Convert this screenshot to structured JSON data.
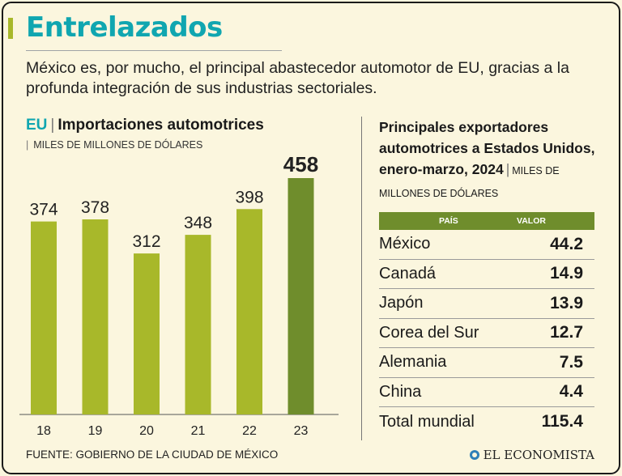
{
  "header": {
    "title": "Entrelazados",
    "subtitle": "México es, por mucho, el principal abastecedor automotor de EU, gracias a la profunda integración de sus industrias sectoriales."
  },
  "colors": {
    "accent": "#10a6b0",
    "bar": "#a8b82a",
    "bar_highlight": "#6f8d2c",
    "table_header": "#6f8d2c"
  },
  "chart_data": {
    "type": "bar",
    "title_prefix": "EU",
    "title": "Importaciones automotrices",
    "ylabel": "MILES DE MILLONES DE DÓLARES",
    "categories": [
      "18",
      "19",
      "20",
      "21",
      "22",
      "23"
    ],
    "values": [
      374,
      378,
      312,
      348,
      398,
      458
    ],
    "highlight_index": 5,
    "ylim": [
      0,
      458
    ],
    "grid": false,
    "legend": "none"
  },
  "table": {
    "title": "Principales exportadores automotrices a Estados Unidos, enero-marzo, 2024",
    "unit": "MILES DE MILLONES DE DÓLARES",
    "columns": [
      "PAÍS",
      "VALOR"
    ],
    "rows": [
      {
        "country": "México",
        "value": "44.2"
      },
      {
        "country": "Canadá",
        "value": "14.9"
      },
      {
        "country": "Japón",
        "value": "13.9"
      },
      {
        "country": "Corea del Sur",
        "value": "12.7"
      },
      {
        "country": "Alemania",
        "value": "7.5"
      },
      {
        "country": "China",
        "value": "4.4"
      },
      {
        "country": "Total mundial",
        "value": "115.4"
      }
    ]
  },
  "footer": {
    "source": "FUENTE: GOBIERNO DE LA CIUDAD DE MÉXICO",
    "brand": "EL ECONOMISTA"
  }
}
